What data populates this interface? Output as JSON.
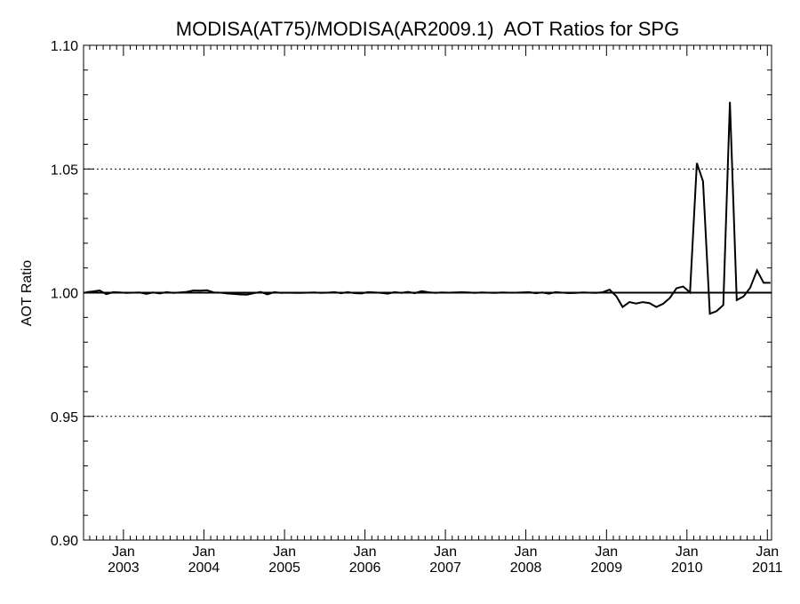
{
  "chart_data": {
    "type": "line",
    "title": "MODISA(AT75)/MODISA(AR2009.1)  AOT Ratios for SPG",
    "xlabel": "",
    "ylabel": "AOT Ratio",
    "ylim": [
      0.9,
      1.1
    ],
    "xlim": [
      "2002-07-04",
      "2011-01-20"
    ],
    "y_ticks": [
      "0.90",
      "0.95",
      "1.00",
      "1.05",
      "1.10"
    ],
    "y_tick_values": [
      0.9,
      0.95,
      1.0,
      1.05,
      1.1
    ],
    "dotted_gridlines_at": [
      0.95,
      1.05
    ],
    "reference_line": 1.0,
    "x_ticks": [
      {
        "month": "Jan",
        "year": "2003",
        "date": "2003-01-01"
      },
      {
        "month": "Jan",
        "year": "2004",
        "date": "2004-01-01"
      },
      {
        "month": "Jan",
        "year": "2005",
        "date": "2005-01-01"
      },
      {
        "month": "Jan",
        "year": "2006",
        "date": "2006-01-01"
      },
      {
        "month": "Jan",
        "year": "2007",
        "date": "2007-01-01"
      },
      {
        "month": "Jan",
        "year": "2008",
        "date": "2008-01-01"
      },
      {
        "month": "Jan",
        "year": "2009",
        "date": "2009-01-01"
      },
      {
        "month": "Jan",
        "year": "2010",
        "date": "2010-01-01"
      },
      {
        "month": "Jan",
        "year": "2011",
        "date": "2011-01-01"
      }
    ],
    "series": [
      {
        "color": "#000000",
        "x": [
          "2002-07",
          "2002-08",
          "2002-09",
          "2002-10",
          "2002-11",
          "2002-12",
          "2003-01",
          "2003-02",
          "2003-03",
          "2003-04",
          "2003-05",
          "2003-06",
          "2003-07",
          "2003-08",
          "2003-09",
          "2003-10",
          "2003-11",
          "2003-12",
          "2004-01",
          "2004-02",
          "2004-03",
          "2004-04",
          "2004-05",
          "2004-06",
          "2004-07",
          "2004-08",
          "2004-09",
          "2004-10",
          "2004-11",
          "2004-12",
          "2005-01",
          "2005-02",
          "2005-03",
          "2005-04",
          "2005-05",
          "2005-06",
          "2005-07",
          "2005-08",
          "2005-09",
          "2005-10",
          "2005-11",
          "2005-12",
          "2006-01",
          "2006-02",
          "2006-03",
          "2006-04",
          "2006-05",
          "2006-06",
          "2006-07",
          "2006-08",
          "2006-09",
          "2006-10",
          "2006-11",
          "2006-12",
          "2007-01",
          "2007-02",
          "2007-03",
          "2007-04",
          "2007-05",
          "2007-06",
          "2007-07",
          "2007-08",
          "2007-09",
          "2007-10",
          "2007-11",
          "2007-12",
          "2008-01",
          "2008-02",
          "2008-03",
          "2008-04",
          "2008-05",
          "2008-06",
          "2008-07",
          "2008-08",
          "2008-09",
          "2008-10",
          "2008-11",
          "2008-12",
          "2009-01",
          "2009-02",
          "2009-03",
          "2009-04",
          "2009-05",
          "2009-06",
          "2009-07",
          "2009-08",
          "2009-09",
          "2009-10",
          "2009-11",
          "2009-12",
          "2010-01",
          "2010-02",
          "2010-03",
          "2010-04",
          "2010-05",
          "2010-06",
          "2010-07",
          "2010-08",
          "2010-09",
          "2010-10",
          "2010-11",
          "2010-12",
          "2011-01"
        ],
        "y": [
          1.0002,
          1.0005,
          1.0009,
          0.9994,
          1.0002,
          1.0001,
          0.9999,
          1.0,
          1.0001,
          0.9995,
          1.0001,
          0.9997,
          1.0002,
          0.9999,
          1.0001,
          1.0003,
          1.0009,
          1.0008,
          1.001,
          1.0001,
          1.0,
          0.9997,
          0.9995,
          0.9993,
          0.9992,
          0.9998,
          1.0003,
          0.9993,
          1.0002,
          0.9999,
          1.0,
          0.9999,
          0.9999,
          1.0,
          1.0001,
          0.9999,
          1.0,
          1.0002,
          0.9998,
          1.0002,
          0.9998,
          0.9997,
          1.0002,
          1.0001,
          0.9999,
          0.9996,
          1.0002,
          0.9999,
          1.0003,
          0.9998,
          1.0006,
          1.0002,
          0.9999,
          1.0001,
          1.0,
          1.0001,
          1.0002,
          1.0001,
          0.9999,
          1.0001,
          1.0,
          0.9999,
          1.0001,
          1.0,
          1.0,
          1.0001,
          1.0002,
          0.9998,
          1.0001,
          0.9996,
          1.0002,
          1.0,
          0.9998,
          0.9999,
          1.0001,
          1.0,
          0.9999,
          1.0002,
          1.0012,
          0.9985,
          0.9942,
          0.9962,
          0.9956,
          0.9962,
          0.9958,
          0.9942,
          0.9955,
          0.9978,
          1.0018,
          1.0025,
          1.0001,
          1.0524,
          1.045,
          0.9915,
          0.9925,
          0.995,
          1.0771,
          0.997,
          0.9985,
          1.002,
          1.009,
          1.004,
          1.004
        ]
      }
    ]
  }
}
